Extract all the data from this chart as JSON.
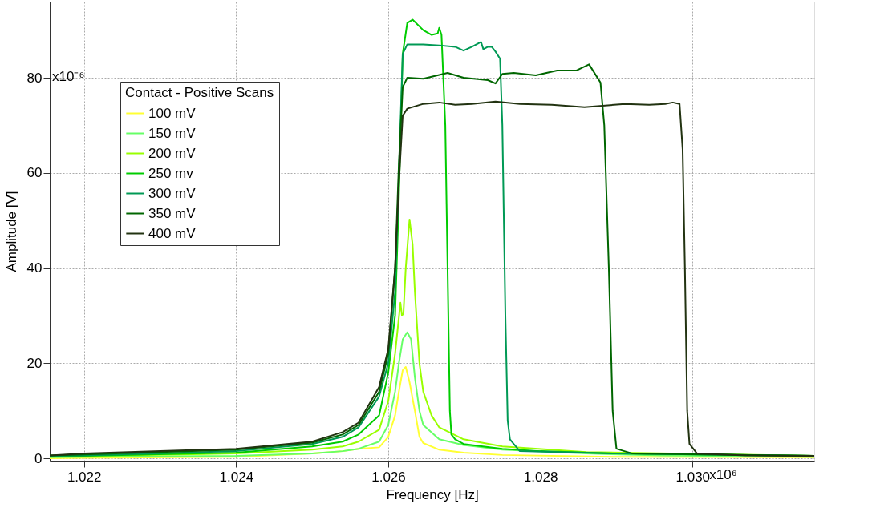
{
  "chart_data": {
    "type": "line",
    "xlabel": "Frequency [Hz]",
    "ylabel": "Amplitude [V]",
    "legend_title": "Contact - Positive Scans",
    "legend": "top left",
    "grid": true,
    "line_style": "solid",
    "annotations": [
      "x10⁶",
      "x10⁻⁶"
    ],
    "xlim": [
      1.02155,
      1.0316
    ],
    "ylim": [
      -0.5,
      96
    ],
    "xticks": [
      1.022,
      1.024,
      1.026,
      1.028,
      {
        "value": 1.03,
        "label": "1.030"
      }
    ],
    "yticks": [
      0,
      20,
      40,
      60,
      80
    ],
    "series": [
      {
        "name": "100 mV",
        "color": "#ffff33",
        "x": [
          1.02155,
          1.022,
          1.024,
          1.025,
          1.0254,
          1.02561,
          1.02588,
          1.026,
          1.02609,
          1.02614,
          1.02619,
          1.02623,
          1.02628,
          1.02635,
          1.02641,
          1.02646,
          1.02667,
          1.02699,
          1.0275,
          1.029,
          1.0316
        ],
        "values": [
          0,
          0.1,
          0.3,
          1,
          1.5,
          2,
          2.3,
          4.5,
          9,
          14,
          18.5,
          19.2,
          16,
          10,
          4.5,
          3.2,
          1.8,
          1.2,
          0.7,
          0.3,
          0.2
        ]
      },
      {
        "name": "150 mV",
        "color": "#66ff66",
        "x": [
          1.02155,
          1.022,
          1.024,
          1.025,
          1.0254,
          1.02561,
          1.02588,
          1.026,
          1.02609,
          1.02614,
          1.02619,
          1.02625,
          1.0263,
          1.02635,
          1.02641,
          1.02646,
          1.02667,
          1.02699,
          1.0275,
          1.0286,
          1.0296,
          1.0316
        ],
        "values": [
          0.2,
          0.3,
          0.5,
          1,
          1.5,
          2,
          3.5,
          7,
          14,
          20,
          25,
          26.5,
          25,
          17,
          10,
          7,
          4,
          2.8,
          1.8,
          1,
          0.6,
          0.3
        ]
      },
      {
        "name": "200 mV",
        "color": "#99ff00",
        "x": [
          1.02155,
          1.022,
          1.024,
          1.025,
          1.0254,
          1.02561,
          1.02588,
          1.026,
          1.02609,
          1.02616,
          1.02618,
          1.0262,
          1.02623,
          1.02628,
          1.02632,
          1.02635,
          1.02641,
          1.02646,
          1.02657,
          1.02667,
          1.02699,
          1.0275,
          1.0286,
          1.0316
        ],
        "values": [
          0.4,
          0.5,
          1,
          1.8,
          2.5,
          3.5,
          6,
          12,
          22,
          32.7,
          30,
          30.5,
          40,
          50.2,
          45,
          35,
          20,
          14,
          9,
          6.5,
          4,
          2.5,
          1.3,
          0.5
        ]
      },
      {
        "name": "250 mv",
        "color": "#00cc00",
        "x": [
          1.02155,
          1.022,
          1.024,
          1.025,
          1.0254,
          1.02561,
          1.02588,
          1.026,
          1.02609,
          1.02614,
          1.02619,
          1.02625,
          1.02632,
          1.02646,
          1.02657,
          1.02665,
          1.02667,
          1.0267,
          1.02675,
          1.02678,
          1.02681,
          1.02683,
          1.02688,
          1.02699,
          1.0275,
          1.028,
          1.029,
          1.0316
        ],
        "values": [
          0.4,
          0.5,
          1.2,
          2.5,
          3.5,
          5,
          9,
          18,
          30,
          55,
          85,
          91.5,
          92.2,
          90,
          89,
          89.3,
          90.5,
          89,
          70,
          40,
          10,
          5,
          4,
          3,
          2,
          1.5,
          1,
          0.5
        ]
      },
      {
        "name": "300 mV",
        "color": "#009955",
        "x": [
          1.02155,
          1.022,
          1.024,
          1.025,
          1.0254,
          1.02561,
          1.02588,
          1.026,
          1.02609,
          1.02614,
          1.02619,
          1.02625,
          1.02646,
          1.02667,
          1.02688,
          1.02699,
          1.0271,
          1.02722,
          1.02725,
          1.02731,
          1.02736,
          1.02741,
          1.02747,
          1.0275,
          1.02754,
          1.02757,
          1.0276,
          1.02765,
          1.02773,
          1.029,
          1.0316
        ],
        "values": [
          0.5,
          0.6,
          1.5,
          3,
          4.5,
          6.5,
          13,
          20,
          35,
          60,
          85,
          87,
          87,
          86.8,
          86.5,
          85.7,
          86.5,
          87.5,
          86,
          86.5,
          86.5,
          85.5,
          84,
          70,
          30,
          8,
          4,
          3,
          1.5,
          1,
          0.5
        ]
      },
      {
        "name": "350 mV",
        "color": "#006600",
        "x": [
          1.02155,
          1.022,
          1.024,
          1.025,
          1.0254,
          1.02561,
          1.02588,
          1.026,
          1.02609,
          1.02614,
          1.02619,
          1.02625,
          1.02646,
          1.02678,
          1.02699,
          1.02731,
          1.02741,
          1.0275,
          1.02765,
          1.02794,
          1.02822,
          1.02847,
          1.02864,
          1.02879,
          1.02884,
          1.0289,
          1.02895,
          1.029,
          1.02921,
          1.0316
        ],
        "values": [
          0.6,
          0.8,
          1.8,
          3.3,
          5,
          7,
          14,
          22,
          40,
          62,
          78,
          80,
          79.8,
          81,
          80,
          79.5,
          78.8,
          80.8,
          81,
          80.5,
          81.5,
          81.5,
          82.8,
          79,
          70,
          40,
          10,
          2,
          1,
          0.5
        ]
      },
      {
        "name": "400 mV",
        "color": "#223311",
        "x": [
          1.02155,
          1.022,
          1.024,
          1.025,
          1.0254,
          1.02561,
          1.02588,
          1.026,
          1.02609,
          1.02614,
          1.02619,
          1.02625,
          1.02646,
          1.02667,
          1.02688,
          1.0271,
          1.02741,
          1.02773,
          1.02815,
          1.02858,
          1.02911,
          1.02943,
          1.02964,
          1.02974,
          1.02983,
          1.02987,
          1.0299,
          1.02993,
          1.02996,
          1.03006,
          1.0307,
          1.0316
        ],
        "values": [
          0.6,
          1,
          2,
          3.5,
          5.5,
          7.5,
          15,
          23,
          40,
          58,
          72,
          73.5,
          74.5,
          74.8,
          74.3,
          74.5,
          75,
          74.5,
          74.3,
          73.8,
          74.5,
          74.3,
          74.5,
          74.8,
          74.5,
          65,
          40,
          10,
          3,
          1,
          0.6,
          0.5
        ]
      }
    ]
  }
}
